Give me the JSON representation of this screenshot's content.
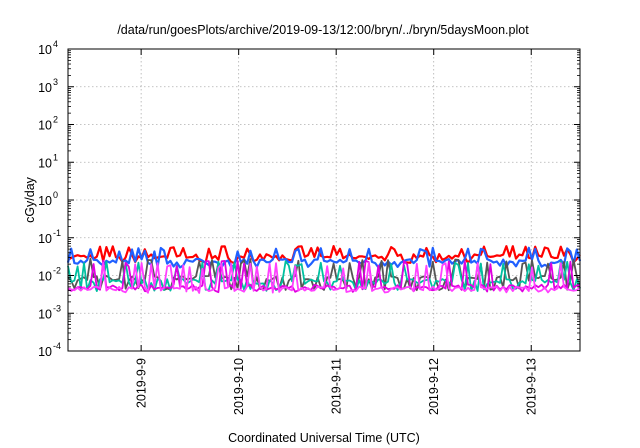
{
  "chart_data": {
    "type": "line",
    "title": "/data/run/goesPlots/archive/2019-09-13/12:00/bryn/../bryn/5daysMoon.plot",
    "xlabel": "Coordinated Universal Time (UTC)",
    "ylabel": "cGy/day",
    "yscale": "log",
    "ylim_exp": [
      -4,
      4
    ],
    "y_ticks": [
      {
        "base": "10",
        "exp": "-4"
      },
      {
        "base": "10",
        "exp": "-3"
      },
      {
        "base": "10",
        "exp": "-2"
      },
      {
        "base": "10",
        "exp": "-1"
      },
      {
        "base": "10",
        "exp": "0"
      },
      {
        "base": "10",
        "exp": "1"
      },
      {
        "base": "10",
        "exp": "2"
      },
      {
        "base": "10",
        "exp": "3"
      },
      {
        "base": "10",
        "exp": "4"
      }
    ],
    "xlim": [
      "2019-09-08T06:00",
      "2019-09-13T12:00"
    ],
    "x_ticks": [
      {
        "label": "2019-9-9",
        "date": "2019-09-09T00:00"
      },
      {
        "label": "2019-9-10",
        "date": "2019-09-10T00:00"
      },
      {
        "label": "2019-9-11",
        "date": "2019-09-11T00:00"
      },
      {
        "label": "2019-9-12",
        "date": "2019-09-12T00:00"
      },
      {
        "label": "2019-9-13",
        "date": "2019-09-13T00:00"
      }
    ],
    "grid": true,
    "series": [
      {
        "color": "#ff0000",
        "base": 0.032,
        "spike": 0.06,
        "dip": 0.024
      },
      {
        "color": "#2060ff",
        "base": 0.024,
        "spike": 0.055,
        "dip": 0.018
      },
      {
        "color": "#555555",
        "base": 0.0085,
        "spike": 0.028,
        "dip": 0.0045
      },
      {
        "color": "#00c0a0",
        "base": 0.007,
        "spike": 0.024,
        "dip": 0.0042
      },
      {
        "color": "#e000e0",
        "base": 0.005,
        "spike": 0.025,
        "dip": 0.004
      },
      {
        "color": "#ff40ff",
        "base": 0.0045,
        "spike": 0.022,
        "dip": 0.0038
      }
    ]
  }
}
